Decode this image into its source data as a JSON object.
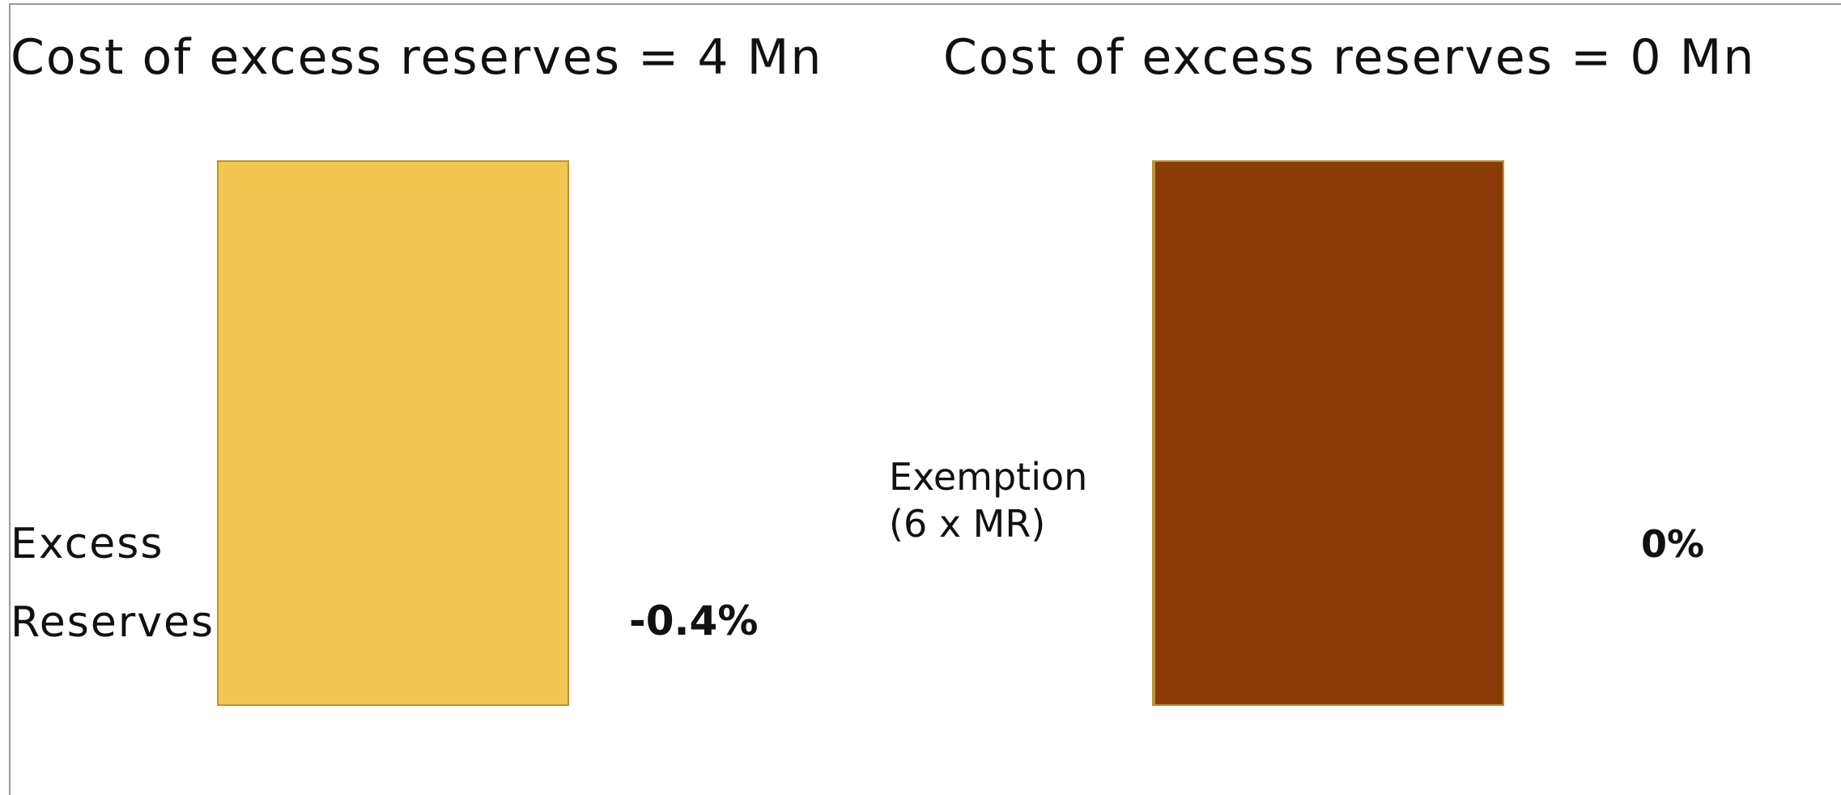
{
  "left_panel": {
    "title": "Cost of excess reserves = 4 Mn",
    "label_line1": "Excess",
    "label_line2": "Reserves",
    "rate": "-0.4%",
    "bar_color": "#f3c651",
    "bar_border_color": "#b8952e"
  },
  "right_panel": {
    "title": "Cost of excess reserves = 0 Mn",
    "label_line1": "Exemption",
    "label_line2": "(6 x MR)",
    "rate": "0%",
    "bar_color": "#8b3c06",
    "bar_border_color": "#b8952e"
  }
}
